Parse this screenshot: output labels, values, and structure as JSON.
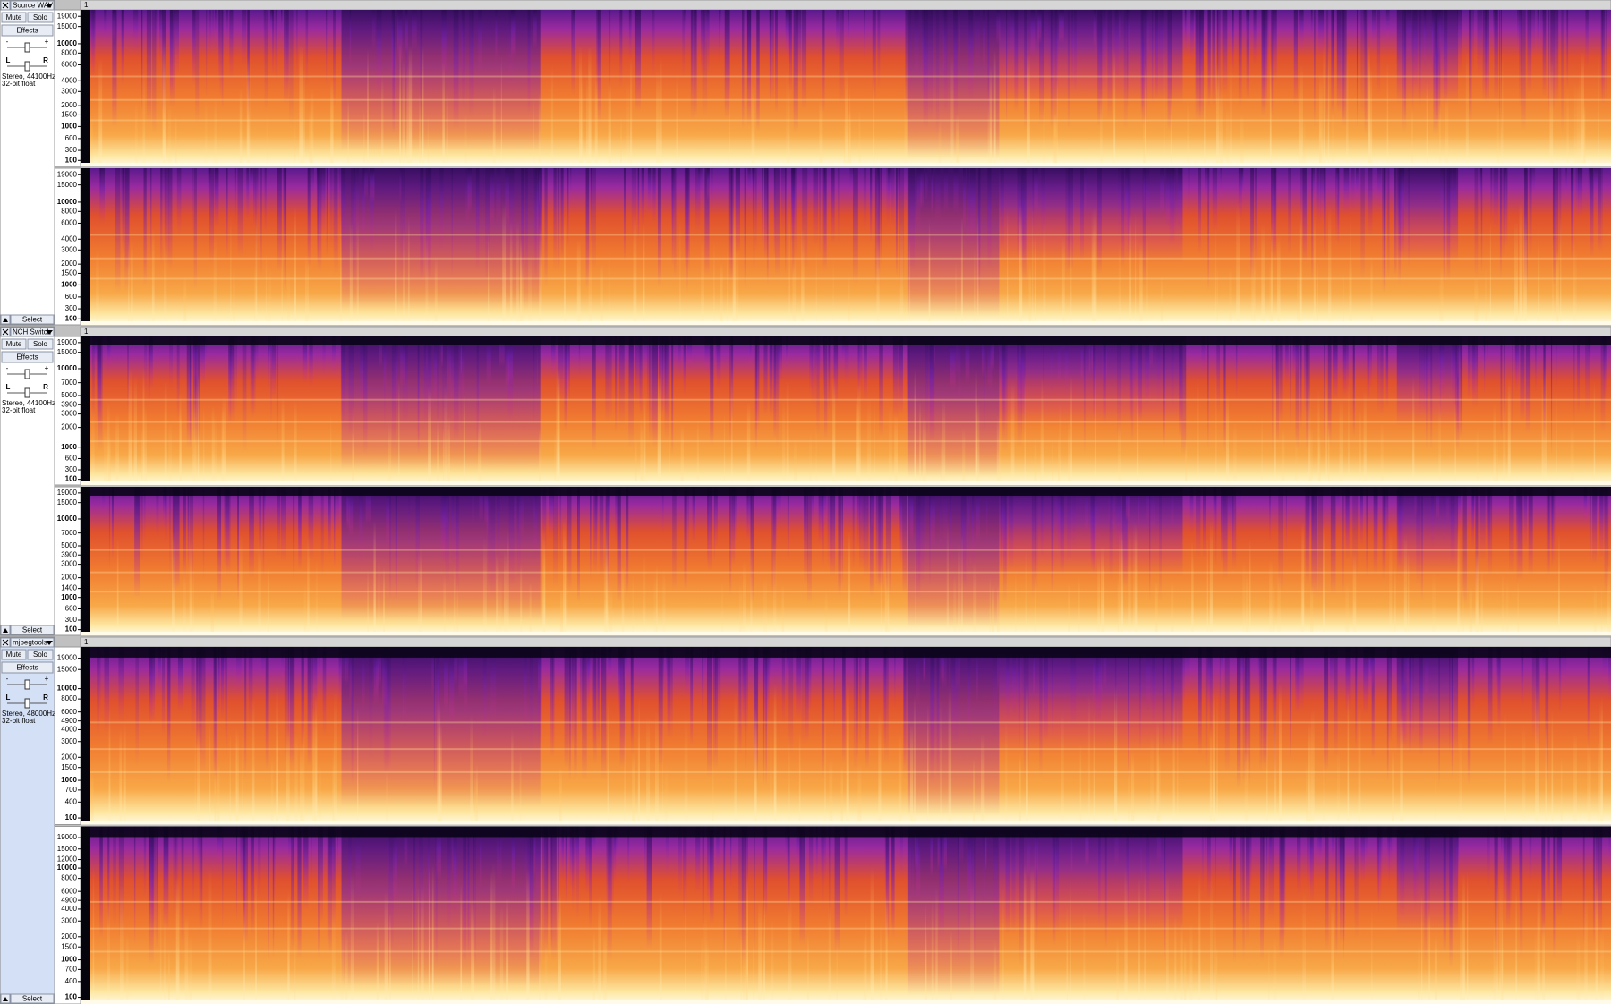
{
  "tracks": [
    {
      "name": "Source WAV",
      "mute": "Mute",
      "solo": "Solo",
      "effects": "Effects",
      "select": "Select",
      "gain_minus": "-",
      "gain_plus": "+",
      "pan_left": "L",
      "pan_right": "R",
      "info": [
        "Stereo, 44100Hz",
        "32-bit float"
      ],
      "clip_name": "1",
      "selected": false,
      "scale": "mel",
      "ylim": [
        0,
        22050
      ],
      "channels": [
        {
          "yticks": [
            19000,
            15000,
            10000,
            8000,
            6000,
            4000,
            3000,
            2000,
            1500,
            1000,
            600,
            300,
            100
          ]
        },
        {
          "yticks": [
            19000,
            15000,
            10000,
            8000,
            6000,
            4000,
            3000,
            2000,
            1500,
            1000,
            600,
            300,
            100
          ]
        }
      ]
    },
    {
      "name": "NCH Switch",
      "mute": "Mute",
      "solo": "Solo",
      "effects": "Effects",
      "select": "Select",
      "gain_minus": "-",
      "gain_plus": "+",
      "pan_left": "L",
      "pan_right": "R",
      "info": [
        "Stereo, 44100Hz",
        "32-bit float"
      ],
      "clip_name": "1",
      "selected": false,
      "scale": "mel",
      "ylim": [
        0,
        22050
      ],
      "channels": [
        {
          "yticks": [
            19000,
            15000,
            10000,
            7000,
            5000,
            3900,
            3000,
            2000,
            1000,
            600,
            300,
            100
          ]
        },
        {
          "yticks": [
            19000,
            15000,
            10000,
            7000,
            5000,
            3900,
            3000,
            2000,
            1400,
            1000,
            600,
            300,
            100
          ]
        }
      ]
    },
    {
      "name": "mjpegtools",
      "mute": "Mute",
      "solo": "Solo",
      "effects": "Effects",
      "select": "Select",
      "gain_minus": "-",
      "gain_plus": "+",
      "pan_left": "L",
      "pan_right": "R",
      "info": [
        "Stereo, 48000Hz",
        "32-bit float"
      ],
      "clip_name": "1",
      "selected": true,
      "scale": "mel",
      "ylim": [
        0,
        24000
      ],
      "channels": [
        {
          "yticks": [
            19000,
            15000,
            10000,
            8000,
            6000,
            4900,
            4000,
            3000,
            2000,
            1500,
            1000,
            700,
            400,
            100
          ]
        },
        {
          "yticks": [
            19000,
            15000,
            12000,
            10000,
            8000,
            6000,
            4900,
            4000,
            3000,
            2000,
            1500,
            1000,
            700,
            400,
            100
          ]
        }
      ]
    }
  ]
}
